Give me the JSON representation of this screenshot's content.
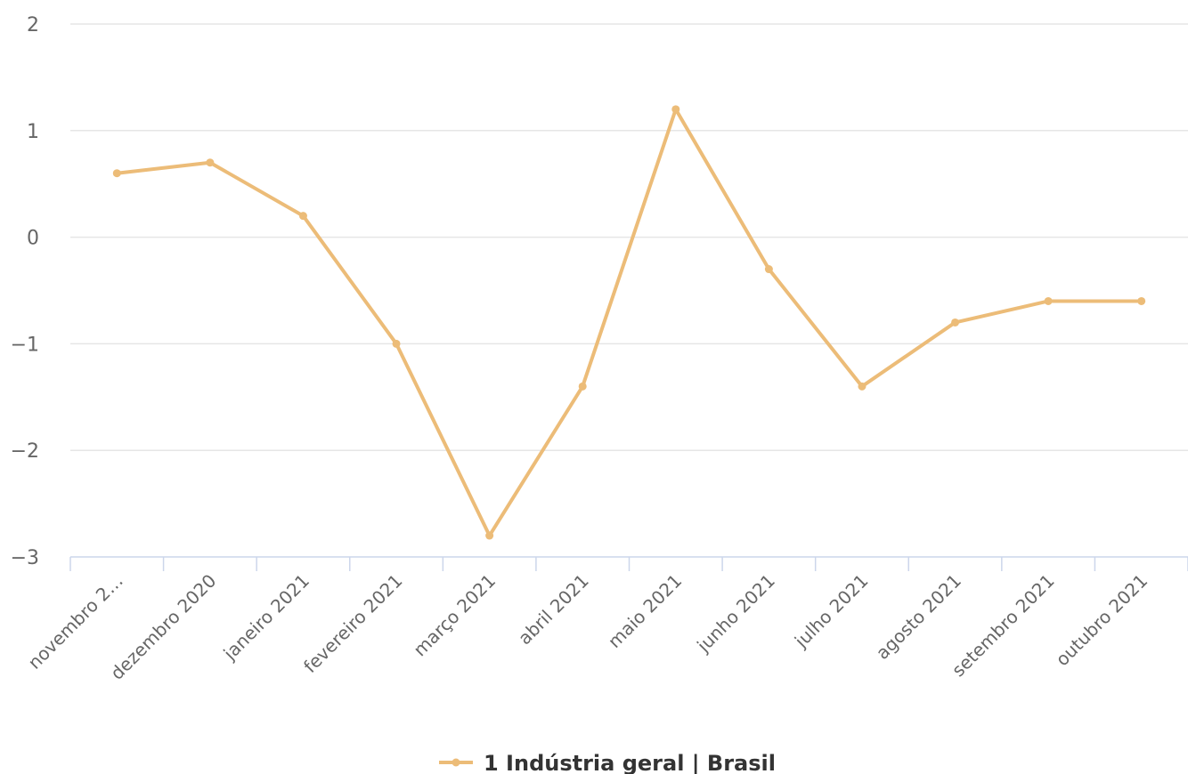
{
  "chart_data": {
    "type": "line",
    "categories": [
      "novembro 2…",
      "dezembro 2020",
      "janeiro 2021",
      "fevereiro 2021",
      "março 2021",
      "abril 2021",
      "maio 2021",
      "junho 2021",
      "julho 2021",
      "agosto 2021",
      "setembro 2021",
      "outubro 2021"
    ],
    "series": [
      {
        "name": "1 Indústria geral | Brasil",
        "color": "#ecbc78",
        "values": [
          0.6,
          0.7,
          0.2,
          -1.0,
          -2.8,
          -1.4,
          1.2,
          -0.3,
          -1.4,
          -0.8,
          -0.6,
          -0.6
        ]
      }
    ],
    "y_ticks": [
      "2",
      "1",
      "0",
      "−1",
      "−2",
      "−3"
    ],
    "ylim": [
      -3,
      2
    ],
    "grid": true,
    "legend": "bottom-center",
    "title": "",
    "xlabel": "",
    "ylabel": ""
  }
}
